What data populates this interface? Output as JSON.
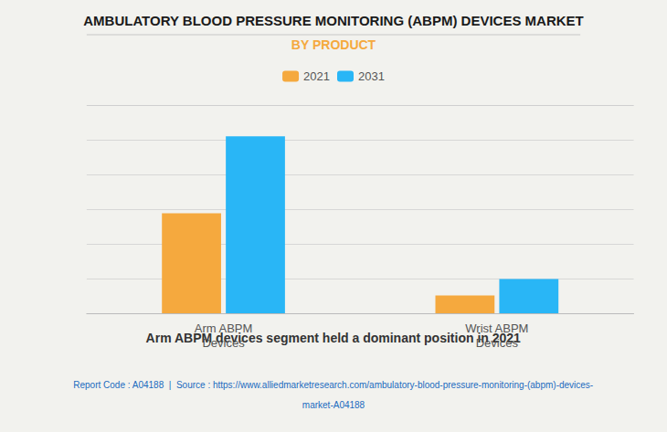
{
  "chart_data": {
    "type": "bar",
    "title": "AMBULATORY BLOOD PRESSURE MONITORING (ABPM) DEVICES MARKET",
    "subtitle": "BY PRODUCT",
    "categories": [
      "Arm ABPM\nDevices",
      "Wrist ABPM\nDevices"
    ],
    "series": [
      {
        "name": "2021",
        "color": "#F5A93E",
        "values": [
          0.48,
          0.085
        ]
      },
      {
        "name": "2031",
        "color": "#29B6F6",
        "values": [
          0.85,
          0.165
        ]
      }
    ],
    "ylim": [
      0,
      1.0
    ],
    "yticks": [
      0,
      0.16666666666666666,
      0.3333333333333333,
      0.5,
      0.6666666666666666,
      0.8333333333333334,
      1.0
    ],
    "grid": true,
    "legend": "top",
    "tick_labels": "x",
    "annotations": [
      "Arm ABPM devices segment held a dominant position in 2021",
      "Report Code : A04188  |  Source : https://www.alliedmarketresearch.com/ambulatory-blood-pressure-monitoring-(abpm)-devices-",
      "market-A04188"
    ]
  }
}
